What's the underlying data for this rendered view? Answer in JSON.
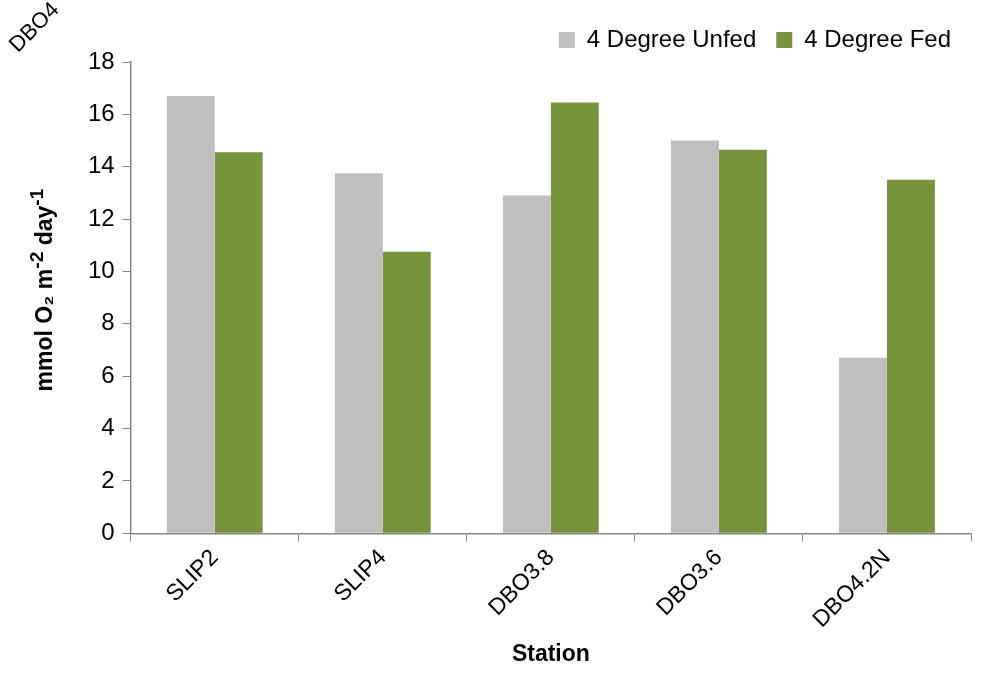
{
  "chart_data": {
    "type": "bar",
    "xlabel": "Station",
    "ylabel": "mmol O₂ m$^{-2}$ day$^{-1}$",
    "categories": [
      "SLIP2",
      "SLIP4",
      "DBO3.8",
      "DBO3.6",
      "DBO4.2N"
    ],
    "series": [
      {
        "name": "4 Degree Unfed",
        "color": "#bfbfbf",
        "values": [
          16.7,
          13.75,
          12.9,
          15.0,
          6.7
        ]
      },
      {
        "name": "4 Degree Fed",
        "color": "#77933c",
        "values": [
          14.55,
          10.75,
          16.45,
          14.65,
          13.5
        ]
      }
    ],
    "ylim": [
      0,
      18
    ],
    "yticks": [
      0,
      2,
      4,
      6,
      8,
      10,
      12,
      14,
      16,
      18
    ],
    "legend": "top right",
    "annotations": [
      "DBO4"
    ]
  }
}
